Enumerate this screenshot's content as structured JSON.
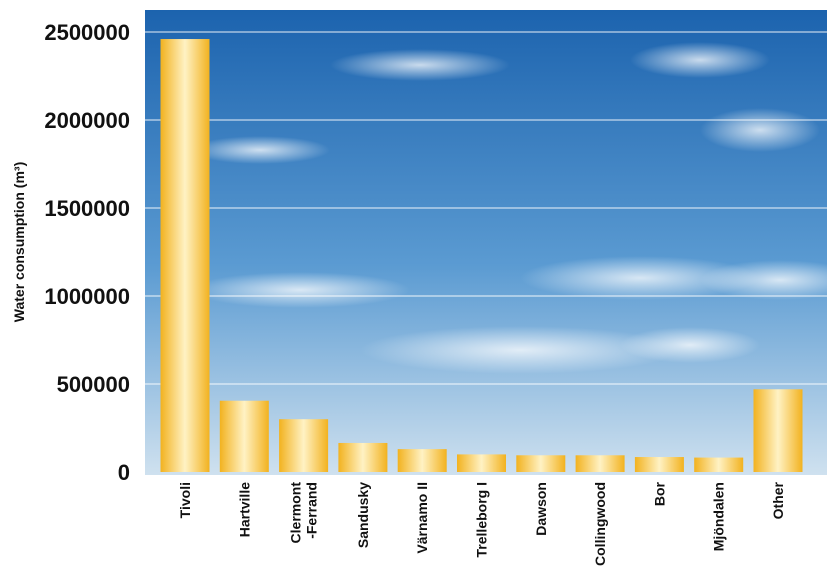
{
  "chart_data": {
    "type": "bar",
    "title": "",
    "xlabel": "",
    "ylabel": "Water consumption (m³)",
    "ylim": [
      0,
      2500000
    ],
    "yticks": [
      0,
      500000,
      1000000,
      1500000,
      2000000,
      2500000
    ],
    "ytick_labels": [
      "0",
      "500000",
      "1000000",
      "1500000",
      "2000000",
      "2500000"
    ],
    "grid": true,
    "categories": [
      [
        "Tivoli"
      ],
      [
        "Hartville"
      ],
      [
        "Clermont",
        "-Ferrand"
      ],
      [
        "Sandusky"
      ],
      [
        "Värnamo II"
      ],
      [
        "Trelleborg I"
      ],
      [
        "Dawson"
      ],
      [
        "Collingwood"
      ],
      [
        "Bor"
      ],
      [
        "Mjöndalen"
      ],
      [
        "Other"
      ]
    ],
    "values": [
      2460000,
      405000,
      300000,
      165000,
      130000,
      100000,
      95000,
      95000,
      85000,
      82000,
      470000
    ],
    "colors": {
      "bar_edge": "#f2b21f",
      "bar_center": "#fff2c4",
      "sky_top": "#1c63ae",
      "sky_mid": "#5b9bd2",
      "sky_bottom": "#cfe1ef",
      "grid": "#ffffff"
    }
  }
}
